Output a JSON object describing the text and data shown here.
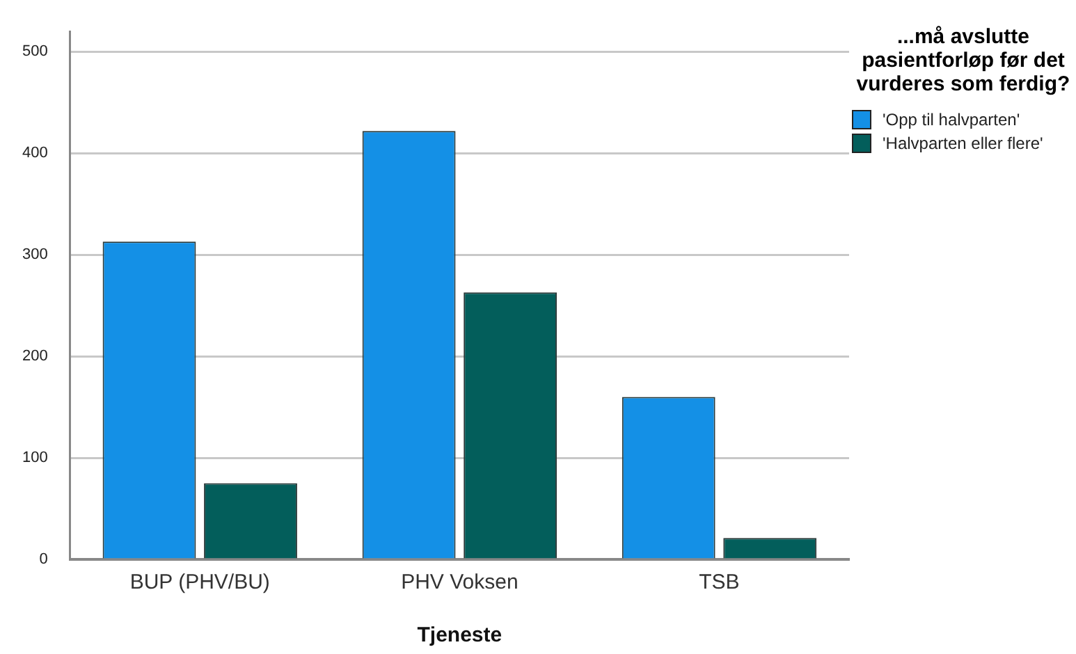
{
  "chart_data": {
    "type": "bar",
    "xlabel": "Tjeneste",
    "legend_title": "...må avslutte pasientforløp før det vurderes som ferdig?",
    "categories": [
      "BUP (PHV/BU)",
      "PHV Voksen",
      "TSB"
    ],
    "series": [
      {
        "name": "'Opp til halvparten'",
        "color": "#1490e6",
        "values": [
          313,
          422,
          160
        ]
      },
      {
        "name": "'Halvparten eller flere'",
        "color": "#035e5b",
        "values": [
          75,
          263,
          21
        ]
      }
    ],
    "ylim": [
      0,
      520
    ],
    "yticks": [
      0,
      100,
      200,
      300,
      400,
      500
    ],
    "grid": "y",
    "legend": "top right"
  }
}
